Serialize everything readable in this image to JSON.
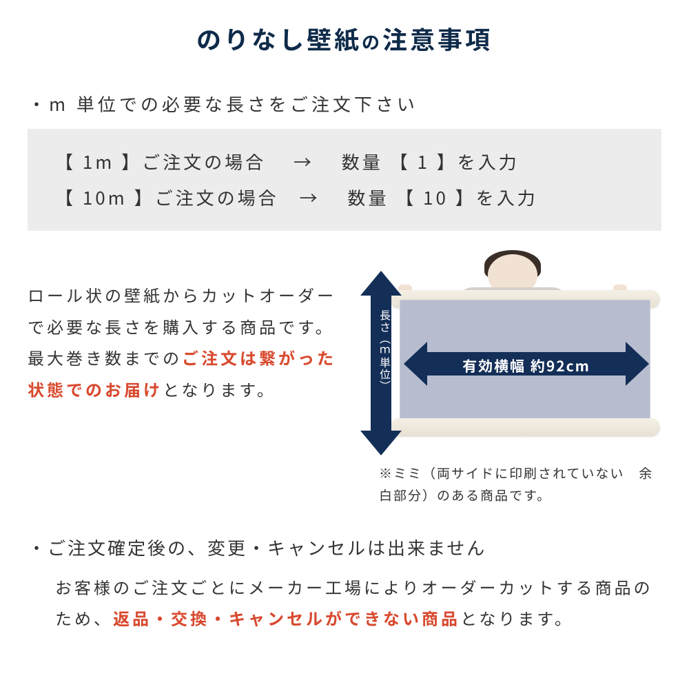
{
  "colors": {
    "title": "#0f2b4a",
    "body": "#333333",
    "emphasis": "#d84a2f",
    "arrow_bg": "#132e57",
    "arrow_text": "#ffffff",
    "box_bg": "#ececec",
    "sheet_bg": "#b7bdcf",
    "page_bg": "#ffffff"
  },
  "title": {
    "prefix": "のりなし壁紙",
    "particle": "の",
    "suffix": "注意事項"
  },
  "bullet1": "・m 単位での必要な長さをご注文下さい",
  "order_examples": {
    "row1": "【 1m 】ご注文の場合　 →　 数量 【 1 】を入力",
    "row2": "【 10m 】ご注文の場合　→　 数量 【 10 】を入力"
  },
  "mid_paragraph": {
    "part1": "ロール状の壁紙からカットオーダーで必要な長さを購入する商品です。最大巻き数までの",
    "emph": "ご注文は繋がった状態でのお届け",
    "part2": "となります。"
  },
  "diagram": {
    "vertical_label": "長さ（ｍ単位）",
    "horizontal_label": "有効横幅 約92cm"
  },
  "note": "※ミミ（両サイドに印刷されていない　余白部分）のある商品です。",
  "bullet2": "・ご注文確定後の、変更・キャンセルは出来ません",
  "body_paragraph": {
    "part1": "お客様のご注文ごとにメーカー工場によりオーダーカットする商品のため、",
    "emph": "返品・交換・キャンセルができない商品",
    "part2": "となります。"
  }
}
